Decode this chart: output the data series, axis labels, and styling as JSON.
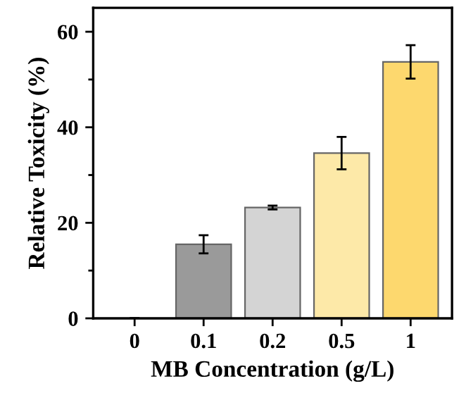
{
  "chart_data": {
    "type": "bar",
    "xlabel": "MB Concentration (g/L)",
    "ylabel": "Relative Toxicity (%)",
    "categories": [
      "0",
      "0.1",
      "0.2",
      "0.5",
      "1"
    ],
    "values": [
      0,
      15.5,
      23.2,
      34.6,
      53.7
    ],
    "errors": [
      null,
      1.9,
      0.4,
      3.4,
      3.5
    ],
    "colors": [
      "#9a9a9a",
      "#9a9a9a",
      "#d4d4d4",
      "#fde9a8",
      "#fdd86e"
    ],
    "ylim": [
      0,
      65
    ],
    "yticks": [
      0,
      20,
      40,
      60
    ],
    "grid": false,
    "legend": false
  }
}
